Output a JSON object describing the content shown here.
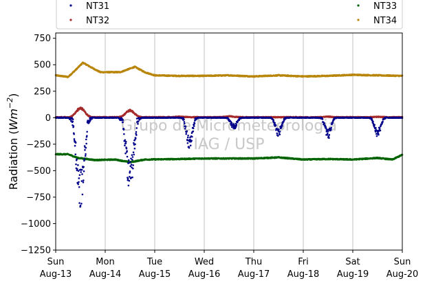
{
  "chart_data": {
    "type": "scatter",
    "title": "",
    "xlabel": "",
    "ylabel_main": "Radiation (",
    "ylabel_unit_base": "Wm",
    "ylabel_unit_exp": "−2",
    "ylabel_close": ")",
    "ylim": [
      -1250,
      800
    ],
    "yticks": [
      {
        "value": 750,
        "label": "750"
      },
      {
        "value": 500,
        "label": "500"
      },
      {
        "value": 250,
        "label": "250"
      },
      {
        "value": 0,
        "label": "0"
      },
      {
        "value": -250,
        "label": "−250"
      },
      {
        "value": -500,
        "label": "−500"
      },
      {
        "value": -750,
        "label": "−750"
      },
      {
        "value": -1000,
        "label": "−1000"
      },
      {
        "value": -1250,
        "label": "−1250"
      }
    ],
    "xlim": [
      "2019-08-13",
      "2019-08-20"
    ],
    "xticks": [
      {
        "day": "Sun",
        "date": "Aug-13"
      },
      {
        "day": "Mon",
        "date": "Aug-14"
      },
      {
        "day": "Tue",
        "date": "Aug-15"
      },
      {
        "day": "Wed",
        "date": "Aug-16"
      },
      {
        "day": "Thu",
        "date": "Aug-17"
      },
      {
        "day": "Fri",
        "date": "Aug-18"
      },
      {
        "day": "Sat",
        "date": "Aug-19"
      },
      {
        "day": "Sun",
        "date": "Aug-20"
      }
    ],
    "grid": "vertical",
    "legend_position": "top, two columns",
    "watermark": [
      "Grupo de Micrometeorologia",
      "IAG / USP"
    ],
    "series": [
      {
        "name": "NT31",
        "color": "#00008b",
        "shape": "baseline with daytime negative dips",
        "baseline": 0,
        "dips": [
          {
            "day_offset": 0.5,
            "min_value": -880
          },
          {
            "day_offset": 1.5,
            "min_value": -700
          },
          {
            "day_offset": 2.7,
            "min_value": -300
          },
          {
            "day_offset": 3.6,
            "min_value": -110
          },
          {
            "day_offset": 4.5,
            "min_value": -180
          },
          {
            "day_offset": 5.5,
            "min_value": -200
          },
          {
            "day_offset": 6.5,
            "min_value": -190
          }
        ]
      },
      {
        "name": "NT32",
        "color": "#a52a2a",
        "shape": "baseline with small positive bumps",
        "baseline": 5,
        "bumps": [
          {
            "day_offset": 0.5,
            "max_value": 100
          },
          {
            "day_offset": 1.5,
            "max_value": 75
          },
          {
            "day_offset": 2.5,
            "max_value": 10
          },
          {
            "day_offset": 3.5,
            "max_value": 15
          },
          {
            "day_offset": 4.5,
            "max_value": 5
          },
          {
            "day_offset": 5.5,
            "max_value": 10
          },
          {
            "day_offset": 6.5,
            "max_value": 8
          }
        ]
      },
      {
        "name": "NT33",
        "color": "#006400",
        "shape": "near-constant negative",
        "points": [
          [
            0.0,
            -345
          ],
          [
            0.25,
            -345
          ],
          [
            0.45,
            -380
          ],
          [
            0.8,
            -400
          ],
          [
            1.2,
            -395
          ],
          [
            1.5,
            -420
          ],
          [
            1.8,
            -395
          ],
          [
            2.5,
            -390
          ],
          [
            3.0,
            -385
          ],
          [
            3.5,
            -385
          ],
          [
            4.0,
            -385
          ],
          [
            4.5,
            -375
          ],
          [
            5.0,
            -395
          ],
          [
            5.5,
            -390
          ],
          [
            6.0,
            -395
          ],
          [
            6.5,
            -380
          ],
          [
            6.8,
            -395
          ],
          [
            7.0,
            -350
          ]
        ]
      },
      {
        "name": "NT34",
        "color": "#b8860b",
        "shape": "near-constant positive",
        "points": [
          [
            0.0,
            400
          ],
          [
            0.25,
            385
          ],
          [
            0.4,
            450
          ],
          [
            0.55,
            520
          ],
          [
            0.7,
            480
          ],
          [
            0.9,
            430
          ],
          [
            1.1,
            430
          ],
          [
            1.3,
            430
          ],
          [
            1.6,
            480
          ],
          [
            1.8,
            430
          ],
          [
            2.0,
            400
          ],
          [
            2.5,
            395
          ],
          [
            3.0,
            395
          ],
          [
            3.5,
            400
          ],
          [
            4.0,
            390
          ],
          [
            4.5,
            400
          ],
          [
            5.0,
            390
          ],
          [
            5.5,
            395
          ],
          [
            6.0,
            405
          ],
          [
            6.5,
            400
          ],
          [
            7.0,
            395
          ]
        ]
      }
    ]
  }
}
